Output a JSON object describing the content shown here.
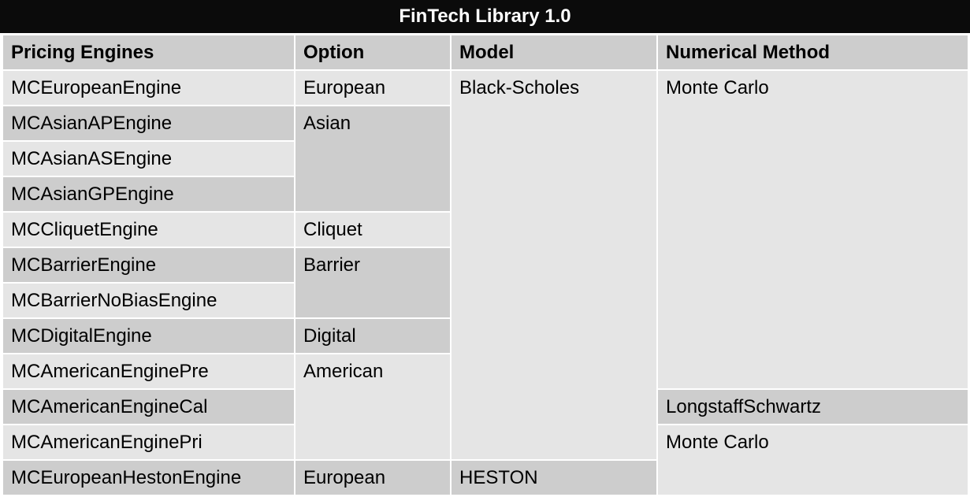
{
  "title": "FinTech Library 1.0",
  "headers": [
    "Pricing Engines",
    "Option",
    "Model",
    "Numerical Method"
  ],
  "engines": [
    "MCEuropeanEngine",
    "MCAsianAPEngine",
    "MCAsianASEngine",
    "MCAsianGPEngine",
    "MCCliquetEngine",
    "MCBarrierEngine",
    "MCBarrierNoBiasEngine",
    "MCDigitalEngine",
    "MCAmericanEnginePre",
    "MCAmericanEngineCal",
    "MCAmericanEnginePri",
    "MCEuropeanHestonEngine"
  ],
  "options": {
    "european": "European",
    "asian": "Asian",
    "cliquet": "Cliquet",
    "barrier": "Barrier",
    "digital": "Digital",
    "american": "American",
    "european_heston": "European"
  },
  "models": {
    "black_scholes": "Black-Scholes",
    "heston": "HESTON"
  },
  "methods": {
    "monte_carlo_1": "Monte Carlo",
    "longstaff": "LongstaffSchwartz",
    "monte_carlo_2": "Monte Carlo"
  }
}
